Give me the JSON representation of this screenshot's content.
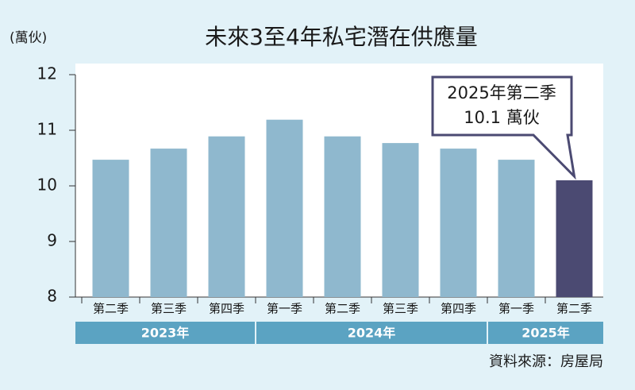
{
  "chart_data": {
    "type": "bar",
    "title": "未來3至4年私宅潛在供應量",
    "y_unit": "(萬伙)",
    "categories": [
      "第二季",
      "第三季",
      "第四季",
      "第一季",
      "第二季",
      "第三季",
      "第四季",
      "第一季",
      "第二季"
    ],
    "values": [
      10.47,
      10.67,
      10.89,
      11.19,
      10.89,
      10.77,
      10.67,
      10.47,
      10.1
    ],
    "colors": [
      "#8fb8ce",
      "#8fb8ce",
      "#8fb8ce",
      "#8fb8ce",
      "#8fb8ce",
      "#8fb8ce",
      "#8fb8ce",
      "#8fb8ce",
      "#4b4a72"
    ],
    "x_groups": [
      {
        "label": "2023年",
        "span": 3
      },
      {
        "label": "2024年",
        "span": 4
      },
      {
        "label": "2025年",
        "span": 2
      }
    ],
    "group_color": "#5ba3c2",
    "ylim": [
      8,
      12
    ],
    "yticks": [
      8,
      9,
      10,
      11,
      12
    ],
    "annotation": [
      "2025年第二季",
      "10.1 萬伙"
    ],
    "source": "資料來源：房屋局"
  }
}
